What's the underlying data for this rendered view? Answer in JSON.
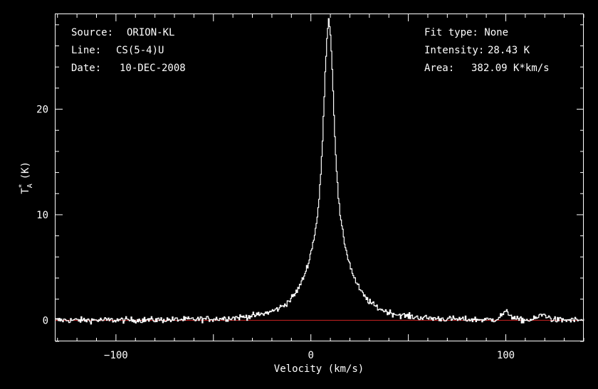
{
  "chart_data": {
    "type": "line",
    "xlabel": "Velocity (km/s)",
    "ylabel": "T",
    "ylabel_sub": "A",
    "ylabel_sup": "*",
    "ylabel_unit": "(K)",
    "xlim": [
      -131,
      140
    ],
    "ylim": [
      -2,
      29
    ],
    "x_ticks": [
      -100,
      0,
      100
    ],
    "x_tick_labels": [
      "−100",
      "0",
      "100"
    ],
    "y_ticks": [
      0,
      10,
      20
    ],
    "y_tick_labels": [
      "0",
      "10",
      "20"
    ],
    "grid": false,
    "baseline": {
      "y": 0,
      "color": "#cc2222"
    },
    "series": [
      {
        "color": "#ffffff",
        "profile": {
          "center": 9,
          "peak": 28.43,
          "core_width": 2.2,
          "wing_width": 9.5,
          "wing_peak": 14.5
        },
        "features": [
          {
            "x": 100,
            "height": 0.7
          },
          {
            "x": 119,
            "height": 0.5
          }
        ],
        "noise_rms": 0.28,
        "x_step": 0.45
      }
    ]
  },
  "info_left": [
    {
      "key": "Source:",
      "value": "ORION-KL"
    },
    {
      "key": "Line:",
      "value": "CS(5-4)U"
    },
    {
      "key": "Date:",
      "value": "10-DEC-2008"
    }
  ],
  "info_right": {
    "fit_type": "Fit type: None",
    "intensity_key": "Intensity:",
    "intensity_value": "28.43 K",
    "area_key": "Area:",
    "area_value": "382.09 K*km/s"
  }
}
